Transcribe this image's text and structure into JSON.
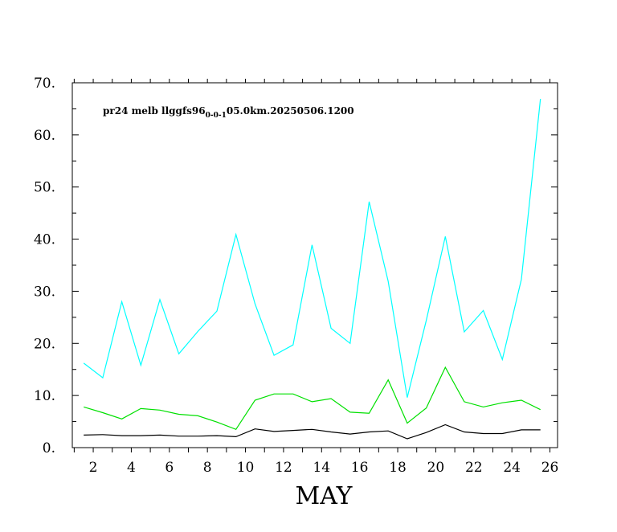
{
  "chart_data": {
    "type": "line",
    "annotation": {
      "prefix": "pr24  melb  llggfs96",
      "subscript": "0-0-1",
      "suffix": "05.0km.20250506.1200"
    },
    "xlabel": "MAY",
    "ylabel": "",
    "xlim": [
      0.9,
      26.4
    ],
    "ylim": [
      0,
      70
    ],
    "x_ticks": [
      2,
      4,
      6,
      8,
      10,
      12,
      14,
      16,
      18,
      20,
      22,
      24,
      26
    ],
    "y_ticks": [
      0,
      10,
      20,
      30,
      40,
      50,
      60,
      70
    ],
    "y_tick_labels": [
      "0.",
      "10.",
      "20.",
      "30.",
      "40.",
      "50.",
      "60.",
      "70."
    ],
    "grid": false,
    "x": [
      1.5,
      2.5,
      3.5,
      4.5,
      5.5,
      6.5,
      7.5,
      8.5,
      9.5,
      10.5,
      11.5,
      12.5,
      13.5,
      14.5,
      15.5,
      16.5,
      17.5,
      18.5,
      19.5,
      20.5,
      21.5,
      22.5,
      23.5,
      24.5,
      25.5
    ],
    "series": [
      {
        "color": "#00ffff",
        "values": [
          16.2,
          13.4,
          28.0,
          15.8,
          28.4,
          18.0,
          22.3,
          26.2,
          40.9,
          27.6,
          17.7,
          19.7,
          38.9,
          22.9,
          20.0,
          47.2,
          31.9,
          9.6,
          24.4,
          40.5,
          22.2,
          26.3,
          16.9,
          32.3,
          66.9
        ]
      },
      {
        "color": "#00e000",
        "values": [
          7.8,
          6.7,
          5.5,
          7.5,
          7.2,
          6.4,
          6.1,
          4.9,
          3.5,
          9.1,
          10.3,
          10.3,
          8.8,
          9.4,
          6.8,
          6.6,
          13.0,
          4.7,
          7.6,
          15.4,
          8.8,
          7.8,
          8.6,
          9.1,
          7.3
        ]
      },
      {
        "color": "#000000",
        "values": [
          2.4,
          2.5,
          2.3,
          2.3,
          2.4,
          2.2,
          2.2,
          2.3,
          2.1,
          3.6,
          3.1,
          3.3,
          3.5,
          3.0,
          2.6,
          3.0,
          3.2,
          1.7,
          2.9,
          4.4,
          3.0,
          2.7,
          2.7,
          3.4,
          3.4
        ]
      }
    ]
  }
}
